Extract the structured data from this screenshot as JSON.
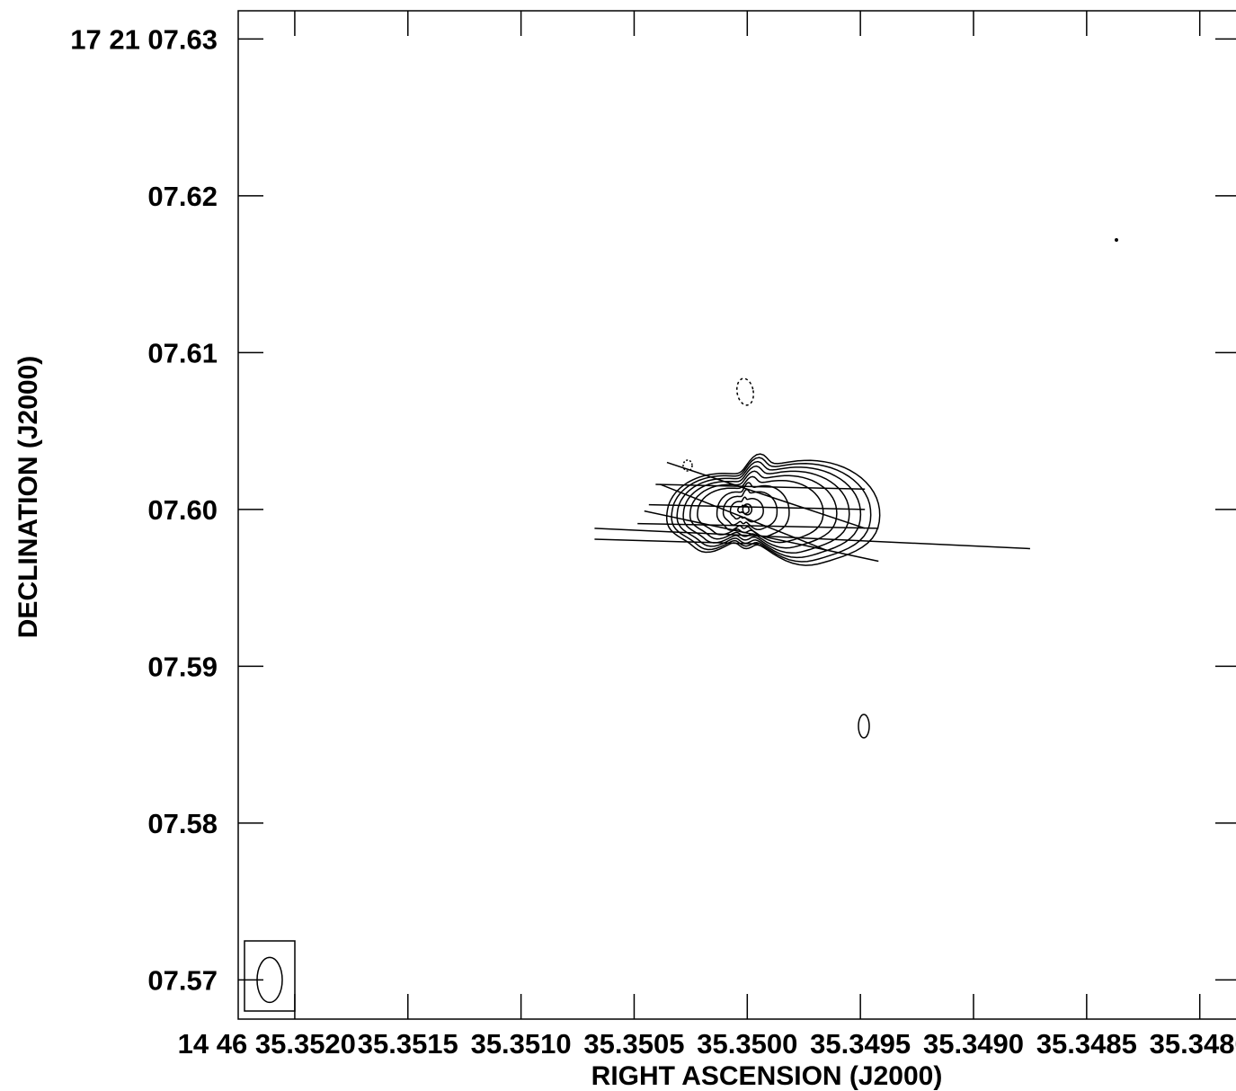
{
  "chart_data": {
    "type": "contour",
    "xlabel": "RIGHT ASCENSION (J2000)",
    "ylabel": "DECLINATION (J2000)",
    "x_ticks": [
      {
        "value": 35.352,
        "label": "14 46 35.3520"
      },
      {
        "value": 35.3515,
        "label": "35.3515"
      },
      {
        "value": 35.351,
        "label": "35.3510"
      },
      {
        "value": 35.3505,
        "label": "35.3505"
      },
      {
        "value": 35.35,
        "label": "35.3500"
      },
      {
        "value": 35.3495,
        "label": "35.3495"
      },
      {
        "value": 35.349,
        "label": "35.3490"
      },
      {
        "value": 35.3485,
        "label": "35.3485"
      },
      {
        "value": 35.348,
        "label": "35.3480"
      }
    ],
    "y_ticks": [
      {
        "value": 7.63,
        "label": "17 21 07.63"
      },
      {
        "value": 7.62,
        "label": "07.62"
      },
      {
        "value": 7.61,
        "label": "07.61"
      },
      {
        "value": 7.6,
        "label": "07.60"
      },
      {
        "value": 7.59,
        "label": "07.59"
      },
      {
        "value": 7.58,
        "label": "07.58"
      },
      {
        "value": 7.57,
        "label": "07.57"
      }
    ],
    "xlim": [
      35.35225,
      35.34782
    ],
    "ylim": [
      7.5675,
      7.6318
    ],
    "source_peak": {
      "ra": 35.35,
      "dec": 7.6
    },
    "contour_levels": [
      0.11,
      0.16,
      0.22,
      0.29,
      0.37,
      0.46,
      0.56,
      0.68,
      0.82,
      0.97
    ],
    "polarization_vectors": [
      {
        "ra1": 35.350355,
        "dec1": 7.603,
        "ra2": 35.34948,
        "dec2": 7.5988
      },
      {
        "ra1": 35.350405,
        "dec1": 7.6016,
        "ra2": 35.34948,
        "dec2": 7.6013
      },
      {
        "ra1": 35.350385,
        "dec1": 7.6016,
        "ra2": 35.34965,
        "dec2": 7.5974
      },
      {
        "ra1": 35.350435,
        "dec1": 7.6003,
        "ra2": 35.34948,
        "dec2": 7.6
      },
      {
        "ra1": 35.350455,
        "dec1": 7.5999,
        "ra2": 35.34942,
        "dec2": 7.5967
      },
      {
        "ra1": 35.350485,
        "dec1": 7.5991,
        "ra2": 35.34942,
        "dec2": 7.5988
      },
      {
        "ra1": 35.350675,
        "dec1": 7.5988,
        "ra2": 35.34875,
        "dec2": 7.5975
      },
      {
        "ra1": 35.350675,
        "dec1": 7.5981,
        "ra2": 35.34995,
        "dec2": 7.5978
      }
    ],
    "beam": {
      "ra": 35.35195,
      "dec": 7.57,
      "major_dec": 0.0035,
      "minor_ra": 0.00013
    }
  }
}
